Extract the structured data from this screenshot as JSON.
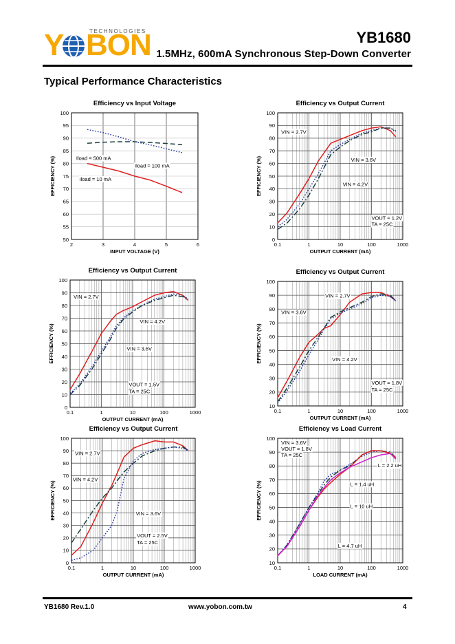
{
  "header": {
    "logo": {
      "brand": "YOBON",
      "tagline": "TECHNOLOGIES"
    },
    "part_number": "YB1680",
    "subtitle": "1.5MHz,  600mA  Synchronous  Step-Down  Converter"
  },
  "section_title": "Typical Performance Characteristics",
  "footer": {
    "revision": "YB1680 Rev.1.0",
    "url": "www.yobon.com.tw",
    "page": "4"
  },
  "colors": {
    "red": "#e02020",
    "blue": "#1f2f9c",
    "dark": "#1e4040",
    "magenta": "#d020d0",
    "grid": "#909090"
  },
  "chart_data": [
    {
      "id": "c1",
      "type": "line",
      "xscale": "linear",
      "title": "Efficiency vs Input Voltage",
      "xlabel": "INPUT VOLTAGE (V)",
      "ylabel": "EFFICIENCY (%)",
      "xlim": [
        2,
        6
      ],
      "ylim": [
        50,
        100
      ],
      "xticks": [
        2,
        3,
        4,
        5,
        6
      ],
      "xticklabels": [
        "2",
        "3",
        "4",
        "5",
        "6"
      ],
      "yticks": [
        50,
        55,
        60,
        65,
        70,
        75,
        80,
        85,
        90,
        95,
        100
      ],
      "series": [
        {
          "name": "Iload = 500 mA",
          "style": "dash",
          "color": "dark",
          "x": [
            2.5,
            3,
            3.5,
            4,
            4.5,
            5,
            5.5
          ],
          "y": [
            88,
            88.4,
            88.6,
            88.6,
            88.3,
            87.9,
            87.4
          ]
        },
        {
          "name": "Iload = 100 mA",
          "style": "dot",
          "color": "blue",
          "x": [
            2.5,
            3,
            3.5,
            4,
            4.5,
            5,
            5.5
          ],
          "y": [
            93.4,
            92.2,
            90.5,
            88.6,
            87.3,
            85.8,
            84.3
          ]
        },
        {
          "name": "Iload = 10 mA",
          "style": "solid",
          "color": "red",
          "x": [
            2.5,
            3,
            3.5,
            4,
            4.5,
            5,
            5.5
          ],
          "y": [
            80,
            78.5,
            77,
            75,
            73.4,
            71,
            68.5
          ]
        }
      ],
      "annotations": [
        {
          "text": "Iload = 500 mA",
          "x": 2.15,
          "y": 81.4
        },
        {
          "text": "Iload = 100 mA",
          "x": 4.0,
          "y": 78.4
        },
        {
          "text": "Iload = 10 mA",
          "x": 2.25,
          "y": 73.1
        }
      ]
    },
    {
      "id": "c2",
      "type": "line",
      "xscale": "log",
      "title": "Efficiency vs Output Current",
      "xlabel": "OUTPUT CURRENT (mA)",
      "ylabel": "EFFICIENCY (%)",
      "xlim": [
        0.1,
        1000
      ],
      "ylim": [
        0,
        100
      ],
      "xticks": [
        0.1,
        1,
        10,
        100,
        1000
      ],
      "xticklabels": [
        "0.1",
        "1",
        "10",
        "100",
        "1000"
      ],
      "yticks": [
        0,
        10,
        20,
        30,
        40,
        50,
        60,
        70,
        80,
        90,
        100
      ],
      "series": [
        {
          "name": "VIN = 2.7V",
          "style": "solid",
          "color": "red",
          "x": [
            0.1,
            0.2,
            0.5,
            1,
            2,
            5,
            10,
            20,
            50,
            100,
            200,
            400,
            600
          ],
          "y": [
            13,
            21,
            36,
            48,
            62,
            76,
            79,
            82,
            86,
            88,
            89,
            86,
            81
          ]
        },
        {
          "name": "VIN = 3.6V",
          "style": "dot",
          "color": "blue",
          "x": [
            0.1,
            0.2,
            0.5,
            1,
            2,
            5,
            10,
            20,
            50,
            100,
            200,
            400,
            600
          ],
          "y": [
            10,
            16,
            28,
            40,
            52,
            70,
            75,
            79,
            84,
            86,
            88,
            88,
            85
          ]
        },
        {
          "name": "VIN = 4.2V",
          "style": "dashdot",
          "color": "dark",
          "x": [
            0.1,
            0.2,
            0.5,
            1,
            2,
            5,
            10,
            20,
            50,
            100,
            200,
            400,
            600
          ],
          "y": [
            8,
            13,
            24,
            35,
            48,
            67,
            73,
            78,
            83,
            85,
            88,
            88,
            86
          ]
        }
      ],
      "annotations": [
        {
          "text": "VIN = 2.7V",
          "x": 0.13,
          "y": 83.5
        },
        {
          "text": "VIN = 3.6V",
          "x": 22,
          "y": 61.5
        },
        {
          "text": "VIN = 4.2V",
          "x": 12,
          "y": 42
        },
        {
          "text": "VOUT = 1.2V",
          "x": 100,
          "y": 15.5
        },
        {
          "text": "TA = 25C",
          "x": 100,
          "y": 10.5
        }
      ]
    },
    {
      "id": "c3",
      "type": "line",
      "xscale": "log",
      "title": "Efficiency vs Output Current",
      "xlabel": "OUTPUT CURRENT (mA)",
      "ylabel": "EFFICIENCY (%)",
      "xlim": [
        0.1,
        1000
      ],
      "ylim": [
        0,
        100
      ],
      "xticks": [
        0.1,
        1,
        10,
        100,
        1000
      ],
      "xticklabels": [
        "0.1",
        "1",
        "10",
        "100",
        "1000"
      ],
      "yticks": [
        0,
        10,
        20,
        30,
        40,
        50,
        60,
        70,
        80,
        90,
        100
      ],
      "series": [
        {
          "name": "VIN = 2.7V",
          "style": "solid",
          "color": "red",
          "x": [
            0.1,
            0.2,
            0.5,
            1,
            2,
            3,
            5,
            10,
            20,
            50,
            100,
            200,
            400,
            600
          ],
          "y": [
            14,
            26,
            44,
            58,
            68,
            73,
            76,
            79,
            83,
            88,
            90,
            91,
            88,
            84
          ]
        },
        {
          "name": "VIN = 4.2V",
          "style": "dot",
          "color": "blue",
          "x": [
            0.1,
            0.2,
            0.5,
            1,
            2,
            3,
            5,
            10,
            20,
            50,
            100,
            200,
            400,
            600
          ],
          "y": [
            11,
            18,
            32,
            44,
            56,
            64,
            70,
            76,
            80,
            85,
            87,
            89,
            88,
            85
          ]
        },
        {
          "name": "VIN = 3.6V",
          "style": "dashdot",
          "color": "dark",
          "x": [
            0.1,
            0.2,
            0.5,
            1,
            2,
            3,
            5,
            10,
            20,
            50,
            100,
            200,
            400,
            600
          ],
          "y": [
            10,
            17,
            30,
            42,
            54,
            62,
            69,
            75,
            80,
            84,
            86,
            88,
            87,
            84
          ]
        }
      ],
      "annotations": [
        {
          "text": "VIN = 2.7V",
          "x": 0.13,
          "y": 85.5
        },
        {
          "text": "VIN = 4.2V",
          "x": 17,
          "y": 66
        },
        {
          "text": "VIN = 3.6V",
          "x": 6.5,
          "y": 44.5
        },
        {
          "text": "VOUT = 1.5V",
          "x": 7.5,
          "y": 16.5
        },
        {
          "text": "TA = 25C",
          "x": 7.5,
          "y": 11
        }
      ]
    },
    {
      "id": "c4",
      "type": "line",
      "xscale": "log",
      "title": "Efficiency vs Output Current",
      "xlabel": "OUTPUT CURRENT (mA)",
      "ylabel": "EFFICIENCY (%)",
      "xlim": [
        0.1,
        1000
      ],
      "ylim": [
        10,
        100
      ],
      "xticks": [
        0.1,
        1,
        10,
        100,
        1000
      ],
      "xticklabels": [
        "0.1",
        "1",
        "10",
        "100",
        "1000"
      ],
      "yticks": [
        10,
        20,
        30,
        40,
        50,
        60,
        70,
        80,
        90,
        100
      ],
      "series": [
        {
          "name": "VIN = 2.7V",
          "style": "solid",
          "color": "red",
          "x": [
            0.1,
            0.2,
            0.5,
            1,
            2,
            3,
            5,
            10,
            20,
            50,
            100,
            200,
            400,
            600
          ],
          "y": [
            16,
            28,
            45,
            56,
            62,
            66,
            68,
            76,
            85,
            91,
            92,
            92,
            89,
            86
          ]
        },
        {
          "name": "VIN = 3.6V",
          "style": "dashdot",
          "color": "dark",
          "x": [
            0.1,
            0.2,
            0.5,
            1,
            2,
            3,
            5,
            10,
            20,
            50,
            100,
            200,
            400,
            600
          ],
          "y": [
            13,
            23,
            38,
            50,
            60,
            66,
            74,
            78,
            81,
            85,
            89,
            91,
            90,
            86
          ]
        },
        {
          "name": "VIN = 4.2V",
          "style": "dot",
          "color": "blue",
          "x": [
            0.1,
            0.2,
            0.5,
            1,
            2,
            3,
            5,
            10,
            20,
            50,
            100,
            200,
            400,
            600
          ],
          "y": [
            12,
            21,
            35,
            47,
            58,
            65,
            73,
            77,
            80,
            84,
            88,
            90,
            89,
            86
          ]
        }
      ],
      "annotations": [
        {
          "text": "VIN = 2.7V",
          "x": 3.3,
          "y": 88.3
        },
        {
          "text": "VIN = 3.6V",
          "x": 0.13,
          "y": 76.3
        },
        {
          "text": "VIN = 4.2V",
          "x": 5.5,
          "y": 42.3
        },
        {
          "text": "VOUT = 1.8V",
          "x": 100,
          "y": 25.5
        },
        {
          "text": "TA = 25C",
          "x": 100,
          "y": 20.5
        }
      ]
    },
    {
      "id": "c5",
      "type": "line",
      "xscale": "log",
      "title": "Efficiency vs Output Current",
      "xlabel": "OUTPUT CURRENT (mA)",
      "ylabel": "EFFICIENCY (%)",
      "xlim": [
        0.1,
        1000
      ],
      "ylim": [
        0,
        100
      ],
      "xticks": [
        0.1,
        1,
        10,
        100,
        1000
      ],
      "xticklabels": [
        "0.1",
        "1",
        "10",
        "100",
        "1000"
      ],
      "yticks": [
        0,
        10,
        20,
        30,
        40,
        50,
        60,
        70,
        80,
        90,
        100
      ],
      "series": [
        {
          "name": "VIN = 2.7V",
          "style": "solid",
          "color": "red",
          "x": [
            0.1,
            0.2,
            0.5,
            1,
            2,
            3,
            5,
            10,
            20,
            50,
            100,
            200,
            400,
            600
          ],
          "y": [
            6,
            13,
            32,
            48,
            62,
            72,
            85,
            92,
            95,
            98,
            97,
            97,
            94,
            90
          ]
        },
        {
          "name": "VIN = 4.2V",
          "style": "dashdot",
          "color": "dark",
          "x": [
            0.1,
            0.2,
            0.5,
            1,
            2,
            3,
            5,
            10,
            20,
            50,
            100,
            200,
            400,
            600
          ],
          "y": [
            16,
            27,
            42,
            52,
            60,
            66,
            73,
            80,
            86,
            90,
            92,
            93,
            93,
            90
          ]
        },
        {
          "name": "VIN = 3.6V",
          "style": "dot",
          "color": "blue",
          "x": [
            0.1,
            0.2,
            0.5,
            1,
            2,
            3,
            5,
            10,
            20,
            50,
            100,
            200,
            400,
            600
          ],
          "y": [
            2,
            4,
            10,
            20,
            30,
            42,
            68,
            82,
            88,
            91,
            92,
            93,
            92,
            90
          ]
        }
      ],
      "annotations": [
        {
          "text": "VIN = 2.7V",
          "x": 0.13,
          "y": 86.5
        },
        {
          "text": "VIN = 4.2V",
          "x": 0.11,
          "y": 65.5
        },
        {
          "text": "VIN = 3.6V",
          "x": 12,
          "y": 38
        },
        {
          "text": "VOUT = 2.5V",
          "x": 13,
          "y": 20.5
        },
        {
          "text": "TA = 25C",
          "x": 13,
          "y": 15
        }
      ]
    },
    {
      "id": "c6",
      "type": "line",
      "xscale": "log",
      "title": "Efficiency vs Load Current",
      "xlabel": "LOAD CURRENT (mA)",
      "ylabel": "EFFICIENCY (%)",
      "xlim": [
        0.1,
        1000
      ],
      "ylim": [
        10,
        100
      ],
      "xticks": [
        0.1,
        1,
        10,
        100,
        1000
      ],
      "xticklabels": [
        "0.1",
        "1",
        "10",
        "100",
        "1000"
      ],
      "yticks": [
        10,
        20,
        30,
        40,
        50,
        60,
        70,
        80,
        90,
        100
      ],
      "series": [
        {
          "name": "L = 2.2 uH",
          "style": "dashdot",
          "color": "dark",
          "x": [
            0.1,
            0.2,
            0.5,
            1,
            2,
            3,
            5,
            10,
            20,
            50,
            100,
            200,
            400,
            600
          ],
          "y": [
            15,
            23,
            38,
            50,
            60,
            66,
            72,
            77,
            80,
            88,
            91,
            91,
            90,
            86
          ]
        },
        {
          "name": "L = 1.4 uH",
          "style": "dot",
          "color": "blue",
          "x": [
            0.1,
            0.2,
            0.5,
            1,
            2,
            3,
            5,
            10,
            20,
            50,
            100,
            200,
            400,
            600
          ],
          "y": [
            15,
            23,
            38,
            50,
            61,
            69,
            74,
            77,
            81,
            87,
            90,
            91,
            89,
            85
          ]
        },
        {
          "name": "L = 10 uH",
          "style": "solid",
          "color": "red",
          "x": [
            0.1,
            0.2,
            0.5,
            1,
            2,
            3,
            5,
            10,
            20,
            50,
            100,
            200,
            400,
            600
          ],
          "y": [
            15,
            22,
            36,
            48,
            58,
            63,
            68,
            74,
            79,
            88,
            91,
            91,
            89,
            86
          ]
        },
        {
          "name": "L = 4.7 uH",
          "style": "solid",
          "color": "magenta",
          "x": [
            0.1,
            0.2,
            0.5,
            1,
            2,
            3,
            5,
            10,
            20,
            50,
            100,
            200,
            400,
            600
          ],
          "y": [
            15,
            22,
            36,
            48,
            59,
            64,
            70,
            75,
            79,
            83,
            86,
            88,
            89,
            85
          ]
        }
      ],
      "annotations": [
        {
          "text": "VIN = 3.6V",
          "x": 0.13,
          "y": 95.5
        },
        {
          "text": "VOUT = 1.8V",
          "x": 0.13,
          "y": 91
        },
        {
          "text": "TA = 25C",
          "x": 0.13,
          "y": 86.5
        },
        {
          "text": "L = 2.2 uH",
          "x": 160,
          "y": 79
        },
        {
          "text": "L = 1.4 uH",
          "x": 21,
          "y": 65.5
        },
        {
          "text": "L = 10 uH",
          "x": 21,
          "y": 49.5
        },
        {
          "text": "L = 4.7 uH",
          "x": 8.5,
          "y": 21
        }
      ]
    }
  ]
}
